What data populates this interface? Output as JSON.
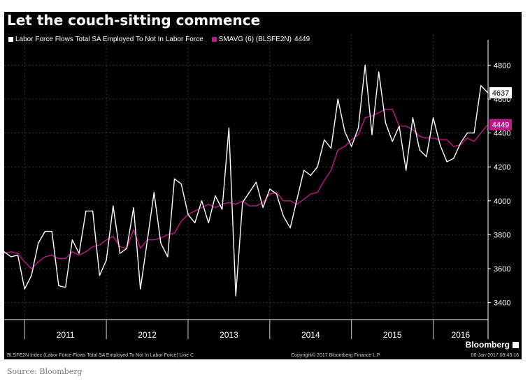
{
  "title": "Let the couch-sitting commence",
  "source": "Source: Bloomberg",
  "brand": "Bloomberg",
  "footer": {
    "left": "BLSFE2N Index (Labor Force Flows Total SA Employed To Not In Labor Force) Line C",
    "center": "Copyright© 2017 Bloomberg Finance L.P.",
    "right": "06-Jan-2017 09:43:18"
  },
  "colors": {
    "background": "#000000",
    "series_main": "#ffffff",
    "series_avg": "#c2168a",
    "axis": "#ffffff"
  },
  "chart_data": {
    "type": "line",
    "title": "Let the couch-sitting commence",
    "xlabel": "",
    "ylabel": "",
    "ylim": [
      3300,
      4900
    ],
    "yticks": [
      3400,
      3600,
      3800,
      4000,
      4200,
      4400,
      4600,
      4800
    ],
    "ytick_labels": [
      "3400",
      "3600",
      "3800",
      "4000",
      "4200",
      "4400",
      "4600",
      "4800"
    ],
    "x_tick_labels": [
      "2011",
      "2012",
      "2013",
      "2014",
      "2015",
      "2016"
    ],
    "x_start": "2010-10",
    "grid": true,
    "legend_position": "top-left",
    "series": [
      {
        "name": "Labor Force Flows Total SA Employed To Not In Labor Force",
        "last_value_label": "4637",
        "values": [
          3700,
          3670,
          3680,
          3480,
          3560,
          3750,
          3820,
          3820,
          3500,
          3490,
          3770,
          3690,
          3940,
          3940,
          3560,
          3650,
          3970,
          3690,
          3720,
          3960,
          3480,
          3760,
          4050,
          3750,
          3670,
          4130,
          4100,
          3920,
          3870,
          4000,
          3870,
          4030,
          3950,
          4430,
          3440,
          3990,
          4050,
          4110,
          3960,
          4070,
          4040,
          3910,
          3840,
          4010,
          4180,
          4150,
          4200,
          4360,
          4310,
          4600,
          4410,
          4320,
          4430,
          4800,
          4390,
          4760,
          4460,
          4350,
          4440,
          4180,
          4490,
          4300,
          4260,
          4490,
          4330,
          4230,
          4250,
          4340,
          4400,
          4400,
          4680,
          4637
        ]
      },
      {
        "name": "SMAVG (6) (BLSFE2N)",
        "legend_value": "4449",
        "last_value_label": "4449",
        "values": [
          3690,
          3700,
          3690,
          3640,
          3600,
          3640,
          3670,
          3680,
          3660,
          3660,
          3700,
          3680,
          3700,
          3730,
          3740,
          3770,
          3790,
          3730,
          3720,
          3830,
          3720,
          3770,
          3770,
          3780,
          3800,
          3810,
          3880,
          3920,
          3940,
          3960,
          3980,
          3960,
          3980,
          3990,
          3980,
          4000,
          3970,
          3970,
          3990,
          4040,
          4050,
          4000,
          4000,
          3980,
          4010,
          4040,
          4050,
          4120,
          4180,
          4300,
          4320,
          4360,
          4390,
          4490,
          4500,
          4520,
          4540,
          4540,
          4440,
          4440,
          4420,
          4380,
          4370,
          4370,
          4360,
          4360,
          4320,
          4330,
          4370,
          4350,
          4400,
          4449
        ]
      }
    ]
  }
}
